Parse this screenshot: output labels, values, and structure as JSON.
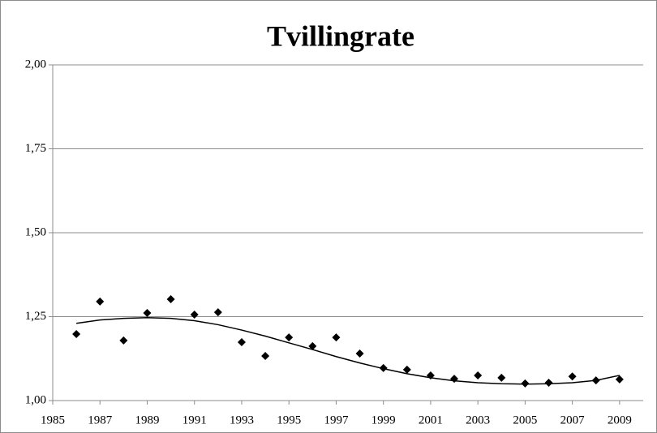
{
  "chart_data": {
    "type": "scatter",
    "title": "Tvillingrate",
    "x": [
      1986,
      1987,
      1988,
      1989,
      1990,
      1991,
      1992,
      1993,
      1994,
      1995,
      1996,
      1997,
      1998,
      1999,
      2000,
      2001,
      2002,
      2003,
      2004,
      2005,
      2006,
      2007,
      2008,
      2009
    ],
    "series": [
      {
        "color": "#000000",
        "style": "markers",
        "values": [
          1.198,
          1.295,
          1.179,
          1.261,
          1.302,
          1.256,
          1.263,
          1.174,
          1.133,
          1.188,
          1.162,
          1.188,
          1.14,
          1.097,
          1.092,
          1.075,
          1.065,
          1.075,
          1.068,
          1.051,
          1.053,
          1.072,
          1.06,
          1.063
        ]
      },
      {
        "color": "#000000",
        "style": "line",
        "values": [
          1.23,
          1.24,
          1.245,
          1.247,
          1.245,
          1.238,
          1.226,
          1.21,
          1.192,
          1.172,
          1.152,
          1.131,
          1.112,
          1.095,
          1.08,
          1.068,
          1.059,
          1.053,
          1.05,
          1.049,
          1.05,
          1.053,
          1.06,
          1.075
        ]
      }
    ],
    "xlim": [
      1985,
      2010
    ],
    "xticks": [
      1985,
      1987,
      1989,
      1991,
      1993,
      1995,
      1997,
      1999,
      2001,
      2003,
      2005,
      2007,
      2009
    ],
    "ylim": [
      1,
      2
    ],
    "yticks": [
      {
        "value": 1,
        "label": "1,00"
      },
      {
        "value": 1.25,
        "label": "1,25"
      },
      {
        "value": 1.5,
        "label": "1,50"
      },
      {
        "value": 1.75,
        "label": "1,75"
      },
      {
        "value": 2,
        "label": "2,00"
      }
    ],
    "grid": true
  }
}
